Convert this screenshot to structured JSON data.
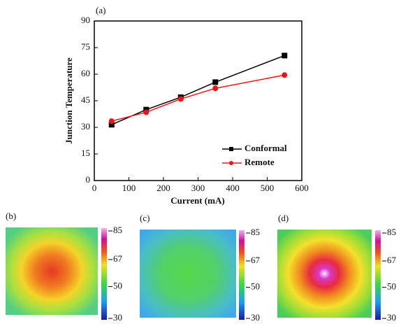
{
  "chart_data": {
    "type": "line",
    "title": "(a)",
    "x_label": "Current (mA)",
    "y_label": "Junction Temperature",
    "x": [
      50,
      150,
      250,
      350,
      550
    ],
    "series": [
      {
        "name": "Conformal",
        "color": "#000000",
        "marker": "square",
        "values": [
          31.5,
          40,
          47,
          55.5,
          70.5
        ]
      },
      {
        "name": "Remote",
        "color": "#e8161b",
        "marker": "circle",
        "values": [
          33.5,
          38.5,
          46,
          52,
          59.5
        ]
      }
    ],
    "xlim": [
      0,
      600
    ],
    "xticks": [
      0,
      100,
      200,
      300,
      400,
      500,
      600
    ],
    "ylim": [
      0,
      90
    ],
    "yticks": [
      0,
      15,
      30,
      45,
      60,
      75,
      90
    ],
    "legend": "lower-right"
  },
  "thermal_images": [
    {
      "label": "(b)",
      "colorbar_ticks": [
        85,
        67,
        50,
        30
      ]
    },
    {
      "label": "(c)",
      "colorbar_ticks": [
        85,
        67,
        50,
        30
      ]
    },
    {
      "label": "(d)",
      "colorbar_ticks": [
        85,
        67,
        50,
        30
      ]
    }
  ]
}
